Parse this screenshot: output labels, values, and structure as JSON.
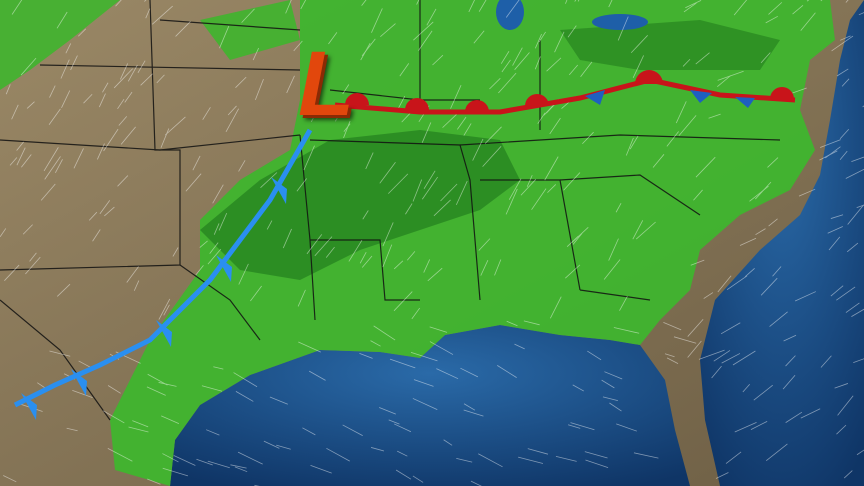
{
  "map": {
    "low_pressure_label": "L",
    "colors": {
      "land": "#8a7a5c",
      "precip_light": "#3fb52e",
      "precip_moderate": "#2a8a22",
      "water": "#1e4f86",
      "cold_front": "#2a8ff0",
      "warm_front": "#c8141a",
      "low_marker": "#e2470c"
    },
    "fronts": [
      {
        "type": "cold",
        "color": "#2a8ff0"
      },
      {
        "type": "stationary",
        "color": "#c8141a"
      }
    ],
    "layers": [
      "precipitation",
      "wind-streamlines",
      "state-boundaries",
      "fronts",
      "low-pressure-center"
    ]
  }
}
